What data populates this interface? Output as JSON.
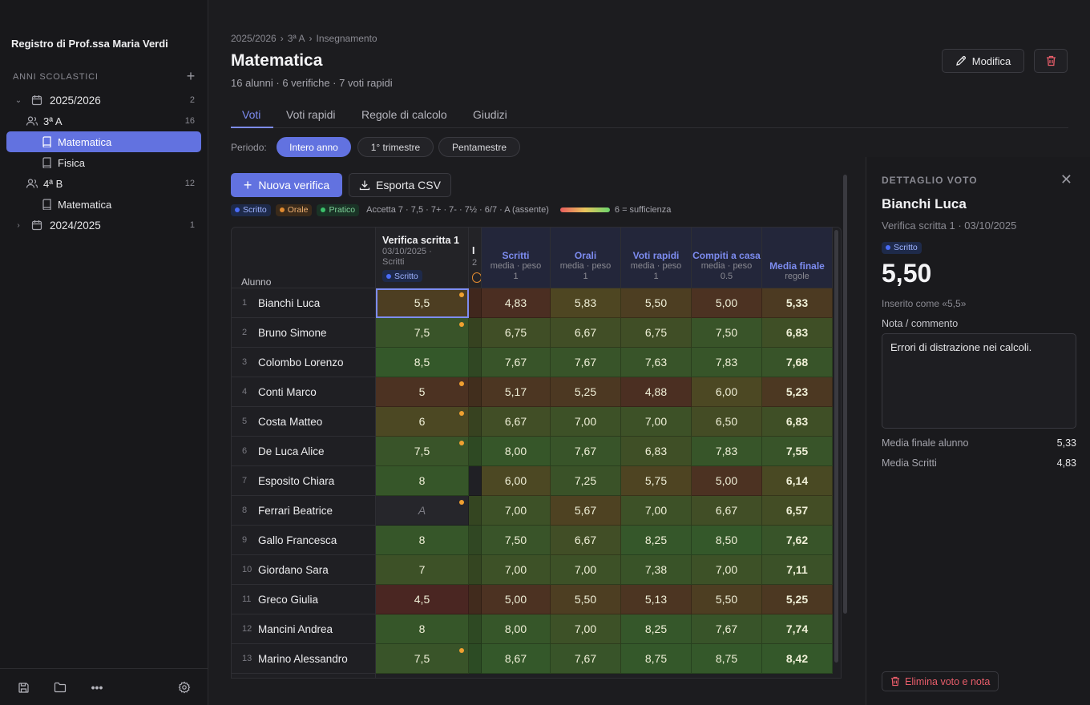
{
  "sidebar": {
    "title": "Registro di Prof.ssa Maria Verdi",
    "section_label": "ANNI SCOLASTICI",
    "add_icon": "plus-icon",
    "tree": [
      {
        "label": "2025/2026",
        "count": "2",
        "expanded": true
      },
      {
        "label": "3ª A",
        "count": "16"
      },
      {
        "label": "Matematica",
        "selected": true
      },
      {
        "label": "Fisica"
      },
      {
        "label": "4ª B",
        "count": "12"
      },
      {
        "label": "Matematica"
      },
      {
        "label": "2024/2025",
        "count": "1",
        "expanded": false
      }
    ],
    "footer_icons": [
      "save-icon",
      "folder-icon",
      "more-icon",
      "gear-icon"
    ]
  },
  "header": {
    "breadcrumb": [
      "2025/2026",
      "3ª A",
      "Insegnamento"
    ],
    "breadcrumb_sep": "›",
    "title": "Matematica",
    "subtitle": "16 alunni · 6 verifiche · 7 voti rapidi",
    "edit_label": "Modifica"
  },
  "tabs": [
    "Voti",
    "Voti rapidi",
    "Regole di calcolo",
    "Giudizi"
  ],
  "period": {
    "label": "Periodo:",
    "options": [
      "Intero anno",
      "1° trimestre",
      "Pentamestre"
    ],
    "selected": "Intero anno"
  },
  "toolbar": {
    "new_label": "Nuova verifica",
    "export_label": "Esporta CSV"
  },
  "legend": {
    "tags": [
      "Scritto",
      "Orale",
      "Pratico"
    ],
    "accept_text": "Accetta 7 · 7,5 · 7+ · 7- · 7½ · 6/7 · A (assente)",
    "scale_text": "6 = sufficienza"
  },
  "grid": {
    "name_header": "Alunno",
    "test_col": {
      "title": "Verifica scritta 1",
      "date": "03/10/2025 ·",
      "type": "Scritti",
      "tag": "Scritto"
    },
    "cut_col": {
      "title": "I",
      "date": "2"
    },
    "agg_cols": [
      {
        "title": "Scritti",
        "sub": "media · peso",
        "sub2": "1"
      },
      {
        "title": "Orali",
        "sub": "media · peso",
        "sub2": "1"
      },
      {
        "title": "Voti rapidi",
        "sub": "media · peso",
        "sub2": "1"
      },
      {
        "title": "Compiti a casa",
        "sub": "media · peso",
        "sub2": "0.5"
      },
      {
        "title": "Media finale",
        "sub": "regole",
        "sub2": ""
      }
    ],
    "rows": [
      {
        "n": "1",
        "name": "Bianchi Luca",
        "test": "5,5",
        "note": true,
        "scritti": "4,83",
        "orali": "5,83",
        "rapidi": "5,50",
        "compiti": "5,00",
        "finale": "5,33"
      },
      {
        "n": "2",
        "name": "Bruno Simone",
        "test": "7,5",
        "note": true,
        "scritti": "6,75",
        "orali": "6,67",
        "rapidi": "6,75",
        "compiti": "7,50",
        "finale": "6,83"
      },
      {
        "n": "3",
        "name": "Colombo Lorenzo",
        "test": "8,5",
        "note": false,
        "scritti": "7,67",
        "orali": "7,67",
        "rapidi": "7,63",
        "compiti": "7,83",
        "finale": "7,68"
      },
      {
        "n": "4",
        "name": "Conti Marco",
        "test": "5",
        "note": true,
        "scritti": "5,17",
        "orali": "5,25",
        "rapidi": "4,88",
        "compiti": "6,00",
        "finale": "5,23"
      },
      {
        "n": "5",
        "name": "Costa Matteo",
        "test": "6",
        "note": true,
        "scritti": "6,67",
        "orali": "7,00",
        "rapidi": "7,00",
        "compiti": "6,50",
        "finale": "6,83"
      },
      {
        "n": "6",
        "name": "De Luca Alice",
        "test": "7,5",
        "note": true,
        "scritti": "8,00",
        "orali": "7,67",
        "rapidi": "6,83",
        "compiti": "7,83",
        "finale": "7,55"
      },
      {
        "n": "7",
        "name": "Esposito Chiara",
        "test": "8",
        "note": false,
        "scritti": "6,00",
        "orali": "7,25",
        "rapidi": "5,75",
        "compiti": "5,00",
        "finale": "6,14"
      },
      {
        "n": "8",
        "name": "Ferrari Beatrice",
        "test": "A",
        "note": true,
        "scritti": "7,00",
        "orali": "5,67",
        "rapidi": "7,00",
        "compiti": "6,67",
        "finale": "6,57"
      },
      {
        "n": "9",
        "name": "Gallo Francesca",
        "test": "8",
        "note": false,
        "scritti": "7,50",
        "orali": "6,67",
        "rapidi": "8,25",
        "compiti": "8,50",
        "finale": "7,62"
      },
      {
        "n": "10",
        "name": "Giordano Sara",
        "test": "7",
        "note": false,
        "scritti": "7,00",
        "orali": "7,00",
        "rapidi": "7,38",
        "compiti": "7,00",
        "finale": "7,11"
      },
      {
        "n": "11",
        "name": "Greco Giulia",
        "test": "4,5",
        "note": false,
        "scritti": "5,00",
        "orali": "5,50",
        "rapidi": "5,13",
        "compiti": "5,50",
        "finale": "5,25"
      },
      {
        "n": "12",
        "name": "Mancini Andrea",
        "test": "8",
        "note": false,
        "scritti": "8,00",
        "orali": "7,00",
        "rapidi": "8,25",
        "compiti": "7,67",
        "finale": "7,74"
      },
      {
        "n": "13",
        "name": "Marino Alessandro",
        "test": "7,5",
        "note": true,
        "scritti": "8,67",
        "orali": "7,67",
        "rapidi": "8,75",
        "compiti": "8,75",
        "finale": "8,42"
      }
    ]
  },
  "detail": {
    "heading": "DETTAGLIO VOTO",
    "student": "Bianchi Luca",
    "meta": "Verifica scritta 1 · 03/10/2025",
    "tag": "Scritto",
    "value": "5,50",
    "entered_as": "Inserito come «5,5»",
    "note_label": "Nota / commento",
    "note_value": "Errori di distrazione nei calcoli.",
    "stats": [
      {
        "label": "Media finale alunno",
        "value": "5,33"
      },
      {
        "label": "Media Scritti",
        "value": "4,83"
      }
    ],
    "delete_label": "Elimina voto e nota"
  }
}
